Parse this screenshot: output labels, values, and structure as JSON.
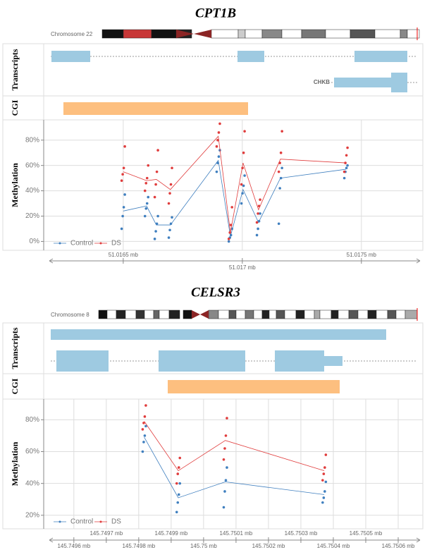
{
  "chart_data": [
    {
      "type": "line",
      "title": "CPT1B",
      "chromosome": "Chromosome 22",
      "track_labels": {
        "transcripts": "Transcripts",
        "cgi": "CGI"
      },
      "y_label": "Methylation",
      "gene_labels": [
        "CHKB"
      ],
      "x": [
        51.0165,
        51.016598,
        51.016639,
        51.016698,
        51.016899,
        51.01695,
        51.017003,
        51.017068,
        51.01716,
        51.017435
      ],
      "xlim": [
        51.016166,
        51.017758
      ],
      "xticks": [
        {
          "value": 51.0165,
          "label": "51.0165 mb"
        },
        {
          "value": 51.017,
          "label": "51.017 mb"
        },
        {
          "value": 51.0175,
          "label": "51.0175 mb"
        }
      ],
      "ylim": [
        -7,
        96
      ],
      "yticks": [
        {
          "value": 0,
          "label": "0%"
        },
        {
          "value": 20,
          "label": "20%"
        },
        {
          "value": 40,
          "label": "40%"
        },
        {
          "value": 60,
          "label": "60%"
        },
        {
          "value": 80,
          "label": "80%"
        }
      ],
      "grid": true,
      "series": [
        {
          "name": "Control",
          "color": "#3f7fbf",
          "values": [
            24,
            28,
            13,
            13,
            64,
            4,
            41,
            15,
            50,
            57
          ],
          "points": [
            [
              10,
              20,
              27,
              37
            ],
            [
              20,
              26,
              30,
              35
            ],
            [
              2,
              8,
              14,
              20
            ],
            [
              3,
              9,
              14,
              19
            ],
            [
              55,
              62,
              67,
              72
            ],
            [
              0,
              3,
              5,
              10
            ],
            [
              30,
              38,
              44,
              52
            ],
            [
              5,
              10,
              16,
              22
            ],
            [
              14,
              42,
              50,
              58
            ],
            [
              50,
              55,
              58,
              60
            ]
          ]
        },
        {
          "name": "DS",
          "color": "#e03c3c",
          "values": [
            55,
            48,
            49,
            41,
            83,
            7,
            62,
            25,
            65,
            62
          ],
          "points": [
            [
              48,
              53,
              58,
              75
            ],
            [
              40,
              46,
              50,
              60
            ],
            [
              35,
              45,
              55,
              72
            ],
            [
              30,
              38,
              45,
              58
            ],
            [
              75,
              80,
              86,
              93
            ],
            [
              2,
              7,
              13,
              27
            ],
            [
              45,
              58,
              70,
              87
            ],
            [
              15,
              22,
              28,
              33
            ],
            [
              55,
              62,
              70,
              87
            ],
            [
              55,
              62,
              68,
              74
            ]
          ]
        }
      ]
    },
    {
      "type": "line",
      "title": "CELSR3",
      "chromosome": "Chromosome 8",
      "track_labels": {
        "transcripts": "Transcripts",
        "cgi": "CGI"
      },
      "y_label": "Methylation",
      "gene_labels": [],
      "x": [
        145.749817,
        145.749922,
        145.750067,
        145.750372
      ],
      "xlim": [
        145.749507,
        145.750676
      ],
      "xticks": [
        {
          "value": 145.7496,
          "label": "145.7496 mb"
        },
        {
          "value": 145.7497,
          "label": "145.7497 mb"
        },
        {
          "value": 145.7498,
          "label": "145.7498 mb"
        },
        {
          "value": 145.7499,
          "label": "145.7499 mb"
        },
        {
          "value": 145.75,
          "label": "145.75 mb"
        },
        {
          "value": 145.7501,
          "label": "145.7501 mb"
        },
        {
          "value": 145.7502,
          "label": "145.7502 mb"
        },
        {
          "value": 145.7503,
          "label": "145.7503 mb"
        },
        {
          "value": 145.7504,
          "label": "145.7504 mb"
        },
        {
          "value": 145.7505,
          "label": "145.7505 mb"
        },
        {
          "value": 145.7506,
          "label": "145.7506 mb"
        }
      ],
      "ylim": [
        11.5,
        93
      ],
      "yticks": [
        {
          "value": 20,
          "label": "20%"
        },
        {
          "value": 40,
          "label": "40%"
        },
        {
          "value": 60,
          "label": "60%"
        },
        {
          "value": 80,
          "label": "80%"
        }
      ],
      "grid": true,
      "series": [
        {
          "name": "Control",
          "color": "#3f7fbf",
          "values": [
            69,
            31,
            41,
            33
          ],
          "points": [
            [
              60,
              66,
              70,
              76
            ],
            [
              22,
              28,
              33,
              40
            ],
            [
              25,
              35,
              42,
              50
            ],
            [
              28,
              31,
              35,
              41
            ]
          ]
        },
        {
          "name": "DS",
          "color": "#e03c3c",
          "values": [
            79,
            48,
            67,
            48
          ],
          "points": [
            [
              74,
              78,
              82,
              89
            ],
            [
              40,
              46,
              50,
              56
            ],
            [
              55,
              62,
              70,
              81
            ],
            [
              42,
              46,
              50,
              58
            ]
          ]
        }
      ]
    }
  ]
}
